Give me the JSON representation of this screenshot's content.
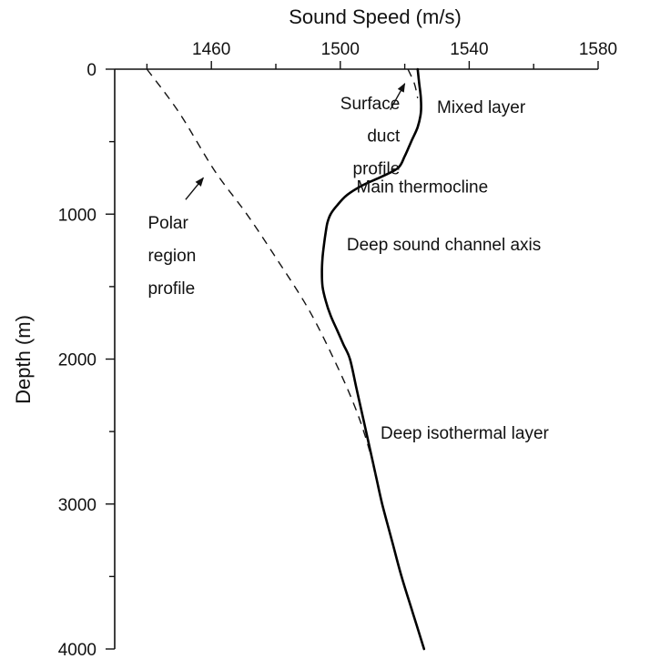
{
  "chart_data": {
    "type": "line",
    "title": "",
    "xlabel": "Sound Speed (m/s)",
    "ylabel": "Depth (m)",
    "x_axis_position": "top",
    "y_axis_inverted": true,
    "xlim": [
      1430,
      1580
    ],
    "ylim": [
      0,
      4000
    ],
    "x_ticks": [
      1460,
      1500,
      1540,
      1580
    ],
    "x_minor_ticks": [
      1440,
      1480,
      1520,
      1560
    ],
    "y_ticks": [
      0,
      1000,
      2000,
      3000,
      4000
    ],
    "y_minor_ticks": [
      500,
      1500,
      2500,
      3500
    ],
    "grid": false,
    "legend": "none",
    "series": [
      {
        "style": "solid",
        "color": "#000000",
        "points": [
          [
            1524,
            0
          ],
          [
            1524.5,
            100
          ],
          [
            1525,
            200
          ],
          [
            1525,
            300
          ],
          [
            1524,
            400
          ],
          [
            1522,
            500
          ],
          [
            1520,
            600
          ],
          [
            1518,
            680
          ],
          [
            1513,
            740
          ],
          [
            1507,
            800
          ],
          [
            1502,
            870
          ],
          [
            1499,
            940
          ],
          [
            1497,
            1000
          ],
          [
            1496,
            1060
          ],
          [
            1495.5,
            1120
          ],
          [
            1495,
            1200
          ],
          [
            1494.5,
            1300
          ],
          [
            1494.3,
            1400
          ],
          [
            1494.5,
            1500
          ],
          [
            1495.5,
            1600
          ],
          [
            1497,
            1700
          ],
          [
            1499,
            1800
          ],
          [
            1501,
            1900
          ],
          [
            1503,
            2000
          ],
          [
            1505,
            2200
          ],
          [
            1507,
            2400
          ],
          [
            1509,
            2600
          ],
          [
            1511,
            2800
          ],
          [
            1513,
            3000
          ],
          [
            1516,
            3250
          ],
          [
            1519,
            3500
          ],
          [
            1522.5,
            3750
          ],
          [
            1526,
            4000
          ]
        ]
      },
      {
        "style": "dashed",
        "color": "#111111",
        "points": [
          [
            1440,
            0
          ],
          [
            1450,
            300
          ],
          [
            1461,
            700
          ],
          [
            1471,
            1000
          ],
          [
            1480,
            1300
          ],
          [
            1490,
            1650
          ],
          [
            1498,
            2000
          ],
          [
            1504,
            2300
          ],
          [
            1508,
            2550
          ],
          [
            1511,
            2800
          ]
        ]
      },
      {
        "style": "dashed",
        "color": "#111111",
        "points": [
          [
            1521,
            0
          ],
          [
            1523,
            100
          ],
          [
            1524,
            200
          ]
        ]
      }
    ],
    "annotations": [
      {
        "id": "surface-duct",
        "lines": [
          "Surface",
          "duct",
          "profile"
        ],
        "anchor": "end",
        "at": [
          1518.5,
          275
        ],
        "line_step": 225,
        "arrow_from": [
          1515.5,
          280
        ],
        "arrow_to": [
          1520,
          100
        ]
      },
      {
        "id": "mixed-layer",
        "lines": [
          "Mixed layer"
        ],
        "anchor": "start",
        "at": [
          1530,
          300
        ]
      },
      {
        "id": "main-thermocline",
        "lines": [
          "Main thermocline"
        ],
        "anchor": "start",
        "at": [
          1505,
          850
        ]
      },
      {
        "id": "deep-sound-channel-axis",
        "lines": [
          "Deep sound channel axis"
        ],
        "anchor": "start",
        "at": [
          1502,
          1250
        ]
      },
      {
        "id": "polar-region",
        "lines": [
          "Polar",
          "region",
          "profile"
        ],
        "anchor": "start",
        "at": [
          1440.3,
          1100
        ],
        "line_step": 225,
        "arrow_from": [
          1452,
          900
        ],
        "arrow_to": [
          1457.5,
          750
        ]
      },
      {
        "id": "deep-isothermal-layer",
        "lines": [
          "Deep isothermal layer"
        ],
        "anchor": "start",
        "at": [
          1512.5,
          2550
        ]
      }
    ]
  }
}
